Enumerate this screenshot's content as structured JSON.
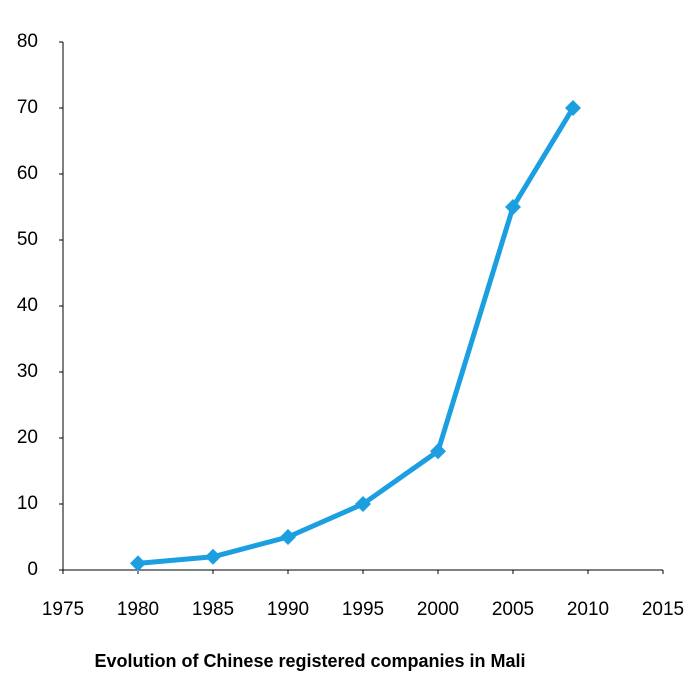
{
  "chart_data": {
    "type": "line",
    "title": "Evolution of Chinese registered companies in Mali",
    "x": [
      1980,
      1985,
      1990,
      1995,
      2000,
      2005,
      2009
    ],
    "values": [
      1,
      2,
      5,
      10,
      18,
      55,
      70
    ],
    "color": "#1b9fe0",
    "xlim": [
      1975,
      2015
    ],
    "xticks": [
      1975,
      1980,
      1985,
      1990,
      1995,
      2000,
      2005,
      2010,
      2015
    ],
    "ylim": [
      0,
      80
    ],
    "yticks": [
      0,
      10,
      20,
      30,
      40,
      50,
      60,
      70,
      80
    ],
    "grid": false
  }
}
